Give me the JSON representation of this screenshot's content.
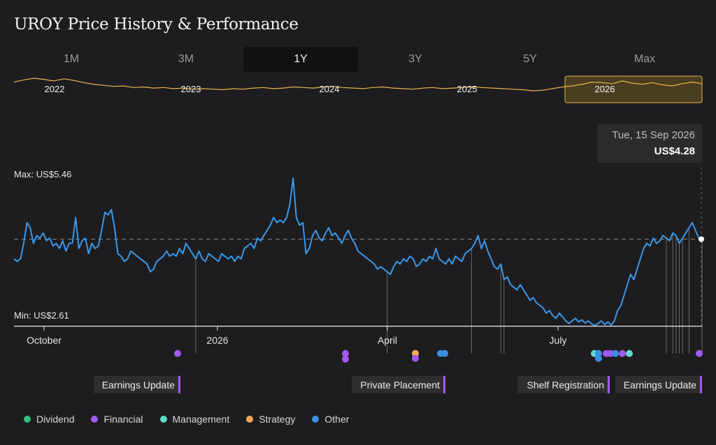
{
  "page": {
    "title": "UROY Price History & Performance"
  },
  "tabs": [
    {
      "label": "1M",
      "active": false
    },
    {
      "label": "3M",
      "active": false
    },
    {
      "label": "1Y",
      "active": true
    },
    {
      "label": "3Y",
      "active": false
    },
    {
      "label": "5Y",
      "active": false
    },
    {
      "label": "Max",
      "active": false
    }
  ],
  "tooltip": {
    "date": "Tue, 15 Sep 2026",
    "value": "US$4.28"
  },
  "legend": [
    {
      "label": "Dividend",
      "color": "#2fc27a"
    },
    {
      "label": "Financial",
      "color": "#a259f0"
    },
    {
      "label": "Management",
      "color": "#62d9c8"
    },
    {
      "label": "Strategy",
      "color": "#f0a95a"
    },
    {
      "label": "Other",
      "color": "#3a8fe0"
    }
  ],
  "colors": {
    "line": "#3a98e8",
    "overview_line": "#e8b44c",
    "background": "#1d1d1f"
  },
  "chart_data": [
    {
      "type": "line",
      "name": "overview",
      "x_ticks": [
        "2022",
        "2023",
        "2024",
        "2025",
        "2026"
      ],
      "selected_range": "1Y",
      "values": [
        4.6,
        5.0,
        5.3,
        5.1,
        4.8,
        5.2,
        4.9,
        4.5,
        4.2,
        4.0,
        3.8,
        3.9,
        3.6,
        3.7,
        3.5,
        3.6,
        3.4,
        3.5,
        3.3,
        3.4,
        3.3,
        3.2,
        3.4,
        3.3,
        3.5,
        3.6,
        3.4,
        3.5,
        3.7,
        3.6,
        3.5,
        3.7,
        3.8,
        3.6,
        3.5,
        3.4,
        3.6,
        3.7,
        3.5,
        3.4,
        3.3,
        3.5,
        3.6,
        3.4,
        3.5,
        3.6,
        3.7,
        3.6,
        3.5,
        3.4,
        3.3,
        3.2,
        3.0,
        3.1,
        3.4,
        3.7,
        3.9,
        4.2,
        4.6,
        4.5,
        4.3,
        4.8,
        4.4,
        4.2,
        4.5,
        4.1,
        3.9,
        4.3,
        4.6,
        4.3
      ]
    },
    {
      "type": "line",
      "name": "main",
      "ylabel_max": "Max: US$5.46",
      "ylabel_min": "Min: US$2.61",
      "ylim": [
        2.61,
        5.46
      ],
      "reference_value": 4.28,
      "x_ticks": [
        "October",
        "2026",
        "April",
        "July"
      ],
      "values": [
        3.9,
        3.85,
        3.9,
        4.2,
        4.6,
        4.5,
        4.2,
        4.35,
        4.3,
        4.4,
        4.25,
        4.3,
        4.15,
        4.2,
        4.1,
        4.25,
        4.05,
        4.2,
        4.2,
        4.7,
        4.1,
        4.25,
        4.3,
        4.0,
        4.2,
        4.1,
        4.15,
        4.45,
        4.8,
        4.75,
        4.85,
        4.5,
        4.0,
        3.95,
        3.85,
        3.9,
        4.05,
        4.0,
        3.95,
        3.9,
        3.85,
        3.8,
        3.65,
        3.7,
        3.85,
        3.9,
        3.95,
        4.05,
        3.95,
        4.0,
        3.95,
        4.1,
        4.0,
        4.2,
        4.1,
        4.0,
        3.9,
        4.05,
        3.9,
        3.85,
        4.0,
        3.95,
        3.9,
        3.85,
        4.0,
        3.95,
        3.9,
        3.95,
        3.85,
        3.95,
        3.9,
        4.1,
        4.15,
        4.2,
        4.1,
        4.3,
        4.25,
        4.35,
        4.45,
        4.55,
        4.7,
        4.6,
        4.65,
        4.6,
        4.7,
        4.95,
        5.46,
        4.7,
        4.55,
        4.6,
        4.0,
        4.1,
        4.35,
        4.45,
        4.3,
        4.25,
        4.4,
        4.5,
        4.35,
        4.4,
        4.3,
        4.2,
        4.35,
        4.45,
        4.3,
        4.2,
        4.05,
        4.0,
        3.95,
        3.9,
        3.85,
        3.8,
        3.7,
        3.75,
        3.7,
        3.65,
        3.6,
        3.75,
        3.85,
        3.8,
        3.9,
        3.85,
        3.95,
        3.9,
        3.75,
        3.8,
        3.9,
        3.85,
        3.95,
        3.9,
        4.1,
        3.9,
        3.85,
        3.8,
        3.9,
        3.8,
        3.95,
        3.9,
        3.85,
        4.0,
        4.05,
        4.1,
        4.2,
        4.35,
        4.1,
        4.25,
        4.05,
        3.9,
        3.75,
        3.7,
        3.8,
        3.5,
        3.55,
        3.4,
        3.35,
        3.3,
        3.4,
        3.3,
        3.2,
        3.1,
        3.15,
        3.05,
        3.0,
        2.95,
        2.85,
        2.9,
        2.8,
        2.75,
        2.85,
        2.78,
        2.7,
        2.65,
        2.7,
        2.75,
        2.68,
        2.72,
        2.66,
        2.7,
        2.64,
        2.61,
        2.65,
        2.7,
        2.63,
        2.68,
        2.62,
        2.7,
        2.9,
        3.0,
        3.2,
        3.4,
        3.6,
        3.5,
        3.7,
        3.9,
        4.1,
        4.2,
        4.15,
        4.3,
        4.2,
        4.25,
        4.35,
        4.3,
        4.25,
        4.4,
        4.35,
        4.2,
        4.3,
        4.4,
        4.5,
        4.6,
        4.45,
        4.3,
        4.28
      ]
    }
  ],
  "events": [
    {
      "label": "Earnings Update",
      "pos": 0.24
    },
    {
      "label": "Private Placement",
      "pos": 0.64
    },
    {
      "label": "Shelf Registration",
      "pos": 0.87
    },
    {
      "label": "Earnings Update",
      "pos": 1.0
    }
  ]
}
